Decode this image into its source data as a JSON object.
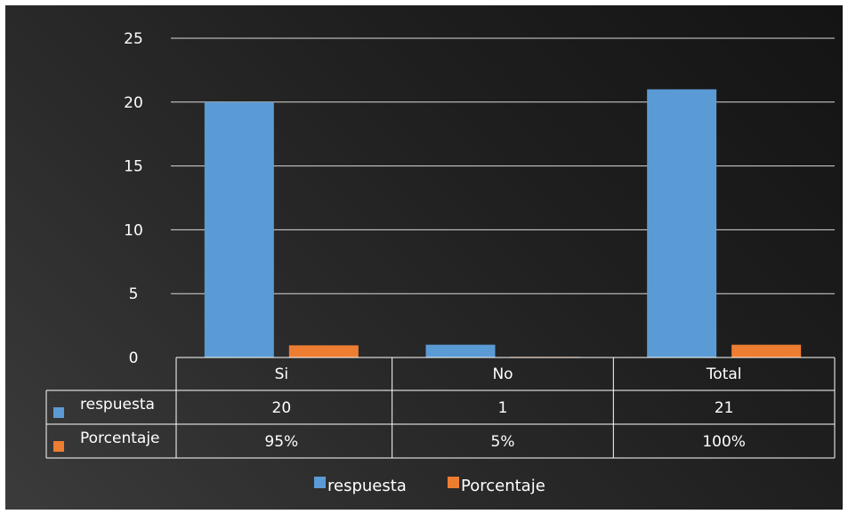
{
  "chart_data": {
    "type": "bar",
    "categories": [
      "Si",
      "No",
      "Total"
    ],
    "series": [
      {
        "name": "respuesta",
        "values": [
          20,
          1,
          21
        ],
        "table_values": [
          "20",
          "1",
          "21"
        ],
        "color": "#5b9bd5"
      },
      {
        "name": "Porcentaje",
        "values": [
          0.95,
          0.05,
          1.0
        ],
        "table_values": [
          "95%",
          "5%",
          "100%"
        ],
        "color": "#ed7d31"
      }
    ],
    "ylim": [
      0,
      25
    ],
    "yticks": [
      0,
      5,
      10,
      15,
      20,
      25
    ],
    "grid": true,
    "data_table": true,
    "legend_position": "bottom",
    "background": "#2a2a2a"
  }
}
